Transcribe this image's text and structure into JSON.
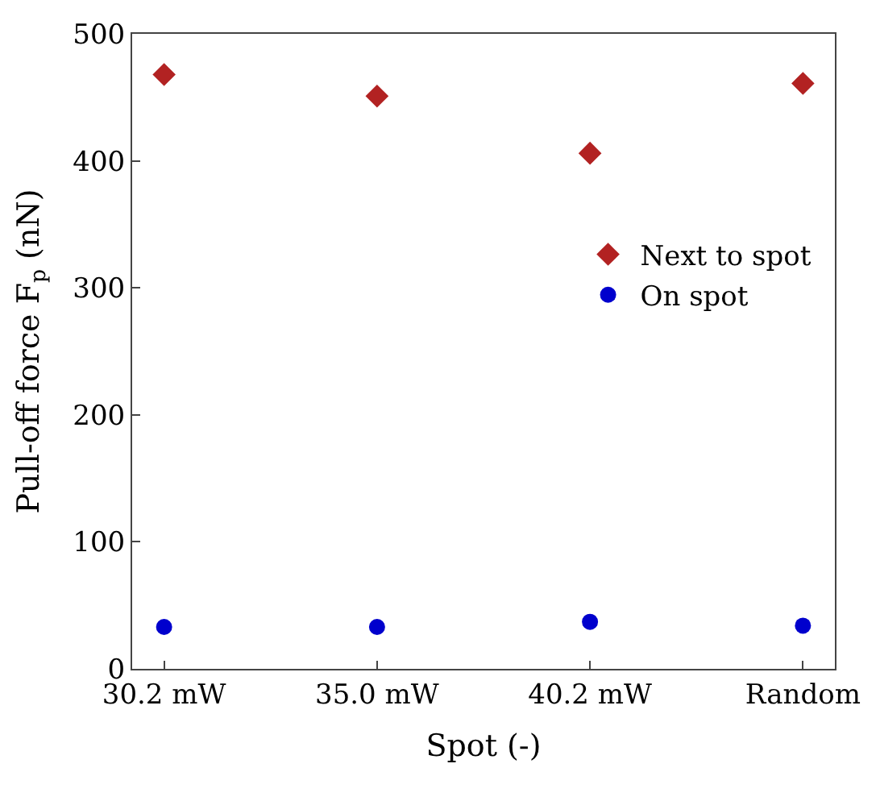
{
  "chart_data": {
    "type": "scatter",
    "xlabel": "Spot (-)",
    "ylabel": "Pull-off force F$_{p}$ (nN)",
    "categories": [
      "30.2 mW",
      "35.0 mW",
      "40.2 mW",
      "Random"
    ],
    "ylim": [
      0,
      500
    ],
    "yticks": [
      0,
      100,
      200,
      300,
      400,
      500
    ],
    "legend": "right",
    "series": [
      {
        "name": "Next to spot",
        "color": "#b22222",
        "marker": "diamond",
        "values": [
          468,
          451,
          406,
          461
        ]
      },
      {
        "name": "On spot",
        "color": "#0000cd",
        "marker": "circle",
        "values": [
          33,
          33,
          37,
          34
        ]
      }
    ]
  }
}
